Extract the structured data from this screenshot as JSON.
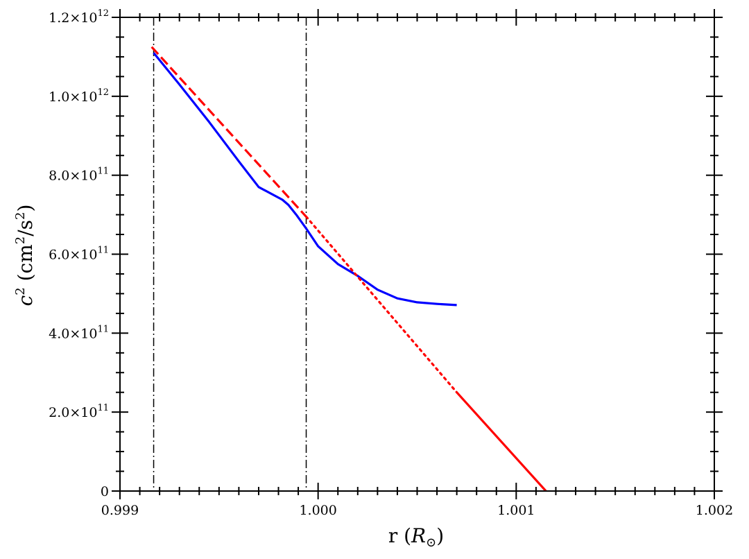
{
  "chart_data": {
    "type": "line",
    "title": "",
    "xlabel_main": "r (",
    "xlabel_symbol": "R",
    "xlabel_sub": "⊙",
    "xlabel_close": ")",
    "ylabel_main": "c",
    "ylabel_exp": "2",
    "ylabel_unit_a": " (cm",
    "ylabel_unit_b": "2",
    "ylabel_unit_c": "/s",
    "ylabel_unit_d": "2",
    "ylabel_unit_e": ")",
    "xlim": [
      0.999,
      1.002
    ],
    "ylim": [
      0,
      1200000000000.0
    ],
    "xticks": [
      {
        "value": 0.999,
        "label": "0.999"
      },
      {
        "value": 1.0,
        "label": "1.000"
      },
      {
        "value": 1.001,
        "label": "1.001"
      },
      {
        "value": 1.002,
        "label": "1.002"
      }
    ],
    "yticks": [
      {
        "value": 0,
        "label": "0",
        "mantissa": "",
        "exp": ""
      },
      {
        "value": 200000000000.0,
        "label": "",
        "mantissa": "2.0×10",
        "exp": "11"
      },
      {
        "value": 400000000000.0,
        "label": "",
        "mantissa": "4.0×10",
        "exp": "11"
      },
      {
        "value": 600000000000.0,
        "label": "",
        "mantissa": "6.0×10",
        "exp": "11"
      },
      {
        "value": 800000000000.0,
        "label": "",
        "mantissa": "8.0×10",
        "exp": "11"
      },
      {
        "value": 1000000000000.0,
        "label": "",
        "mantissa": "1.0×10",
        "exp": "12"
      },
      {
        "value": 1200000000000.0,
        "label": "",
        "mantissa": "1.2×10",
        "exp": "12"
      }
    ],
    "vlines": [
      0.99917,
      0.99994
    ],
    "series": [
      {
        "style": "solid",
        "color": "#0000ff",
        "points": [
          [
            0.99917,
            1110000000000.0
          ],
          [
            0.9993,
            1030000000000.0
          ],
          [
            0.99945,
            935000000000.0
          ],
          [
            0.9996,
            835000000000.0
          ],
          [
            0.9997,
            770000000000.0
          ],
          [
            0.99982,
            738000000000.0
          ],
          [
            0.99985,
            725000000000.0
          ],
          [
            0.99989,
            700000000000.0
          ],
          [
            0.99994,
            665000000000.0
          ],
          [
            1.0,
            620000000000.0
          ],
          [
            1.0001,
            575000000000.0
          ],
          [
            1.0002,
            545000000000.0
          ],
          [
            1.0003,
            510000000000.0
          ],
          [
            1.0004,
            488000000000.0
          ],
          [
            1.0005,
            478000000000.0
          ],
          [
            1.0006,
            474000000000.0
          ],
          [
            1.0007,
            471000000000.0
          ]
        ]
      },
      {
        "style": "dashed",
        "color": "#ff0000",
        "points": [
          [
            0.99916,
            1125000000000.0
          ],
          [
            0.99994,
            695000000000.0
          ]
        ]
      },
      {
        "style": "dotted",
        "color": "#ff0000",
        "points": [
          [
            0.99994,
            695000000000.0
          ],
          [
            1.0007,
            250000000000.0
          ]
        ]
      },
      {
        "style": "solid",
        "color": "#ff0000",
        "points": [
          [
            1.0007,
            250000000000.0
          ],
          [
            1.00115,
            0.0
          ]
        ]
      }
    ]
  }
}
